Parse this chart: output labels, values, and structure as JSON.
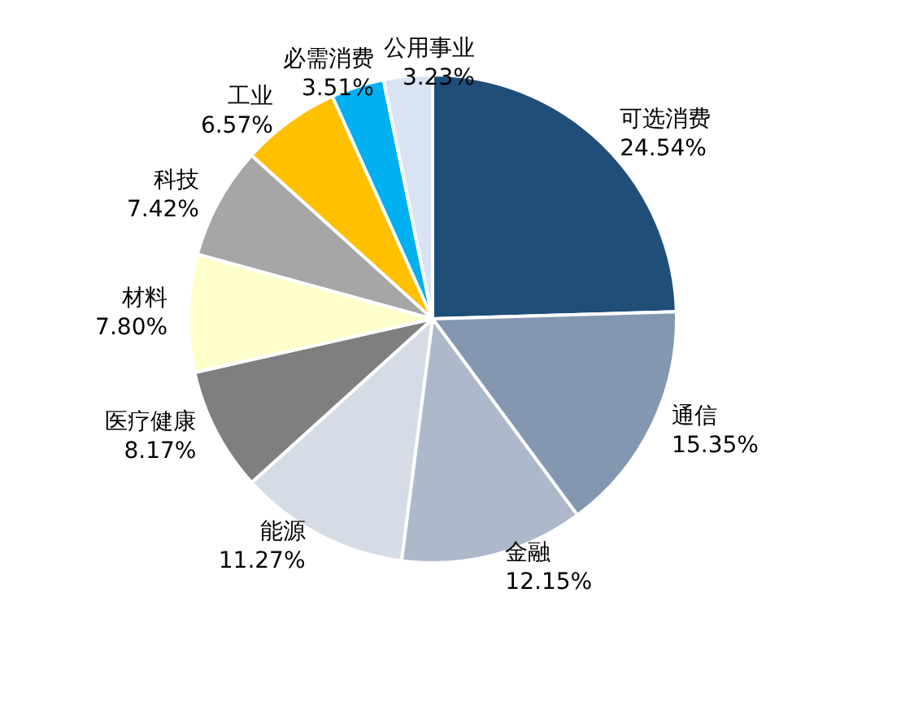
{
  "chart_data": {
    "type": "pie",
    "categories": [
      "可选消费",
      "通信",
      "金融",
      "能源",
      "医疗健康",
      "材料",
      "科技",
      "工业",
      "必需消费",
      "公用事业"
    ],
    "values": [
      24.54,
      15.35,
      12.15,
      11.27,
      8.17,
      7.8,
      7.42,
      6.57,
      3.51,
      3.23
    ],
    "value_labels": [
      "24.54%",
      "15.35%",
      "12.15%",
      "11.27%",
      "8.17%",
      "7.80%",
      "7.42%",
      "6.57%",
      "3.51%",
      "3.23%"
    ],
    "colors": [
      "#1f4e79",
      "#8497b0",
      "#adb9ca",
      "#d6dce5",
      "#7f7f7f",
      "#ffffcc",
      "#a6a6a6",
      "#ffc000",
      "#00b0f0",
      "#dae3f3"
    ],
    "legend": false
  }
}
